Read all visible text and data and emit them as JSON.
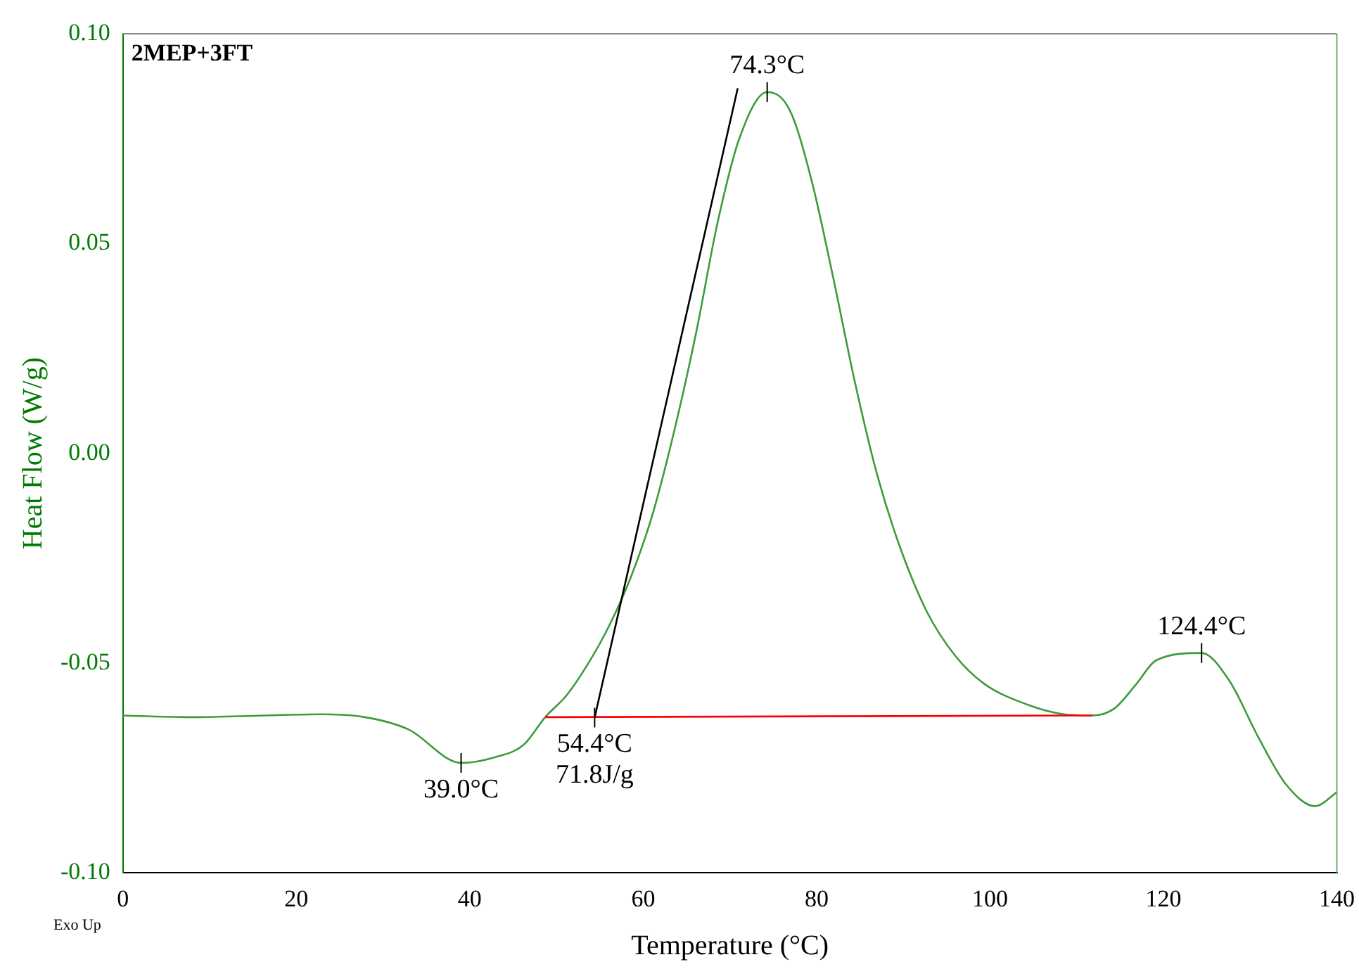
{
  "chart_data": {
    "type": "line",
    "title": "2MEP+3FT",
    "xlabel": "Temperature (°C)",
    "ylabel": "Heat Flow (W/g)",
    "xlim": [
      0,
      140
    ],
    "xticks": [
      0,
      20,
      40,
      60,
      80,
      100,
      120,
      140
    ],
    "ylim": [
      -0.1,
      0.1
    ],
    "yticks": [
      {
        "value": -0.1,
        "label": "-0.10"
      },
      {
        "value": -0.05,
        "label": "-0.05"
      },
      {
        "value": 0,
        "label": "0.00"
      },
      {
        "value": 0.05,
        "label": "0.05"
      },
      {
        "value": 0.1,
        "label": "0.10"
      }
    ],
    "grid": false,
    "legend": false,
    "marker": "none",
    "line_style": "solid",
    "series": [
      {
        "color": "#3c9c3c",
        "x": [
          0,
          8,
          16.3,
          22.9,
          27.9,
          32.9,
          39.0,
          42.8,
          46.2,
          48.7,
          51.2,
          53.6,
          56.1,
          58.6,
          61.1,
          63.6,
          66.1,
          68.6,
          71.1,
          74.3,
          76.9,
          79.4,
          81.9,
          84.4,
          86.9,
          89.4,
          92.7,
          96.0,
          99.3,
          104.3,
          108.5,
          111.8,
          114.3,
          116.8,
          119.2,
          124.4,
          127.6,
          130.9,
          134.2,
          137.5,
          140
        ],
        "values": [
          -0.0625,
          -0.0629,
          -0.0625,
          -0.0622,
          -0.0629,
          -0.0658,
          -0.0738,
          -0.0725,
          -0.0695,
          -0.0629,
          -0.0576,
          -0.0503,
          -0.041,
          -0.0294,
          -0.0144,
          0.0055,
          0.0287,
          0.0552,
          0.0751,
          0.0861,
          0.0818,
          0.0652,
          0.042,
          0.0171,
          -0.0045,
          -0.0211,
          -0.0377,
          -0.0483,
          -0.0549,
          -0.0599,
          -0.0622,
          -0.0625,
          -0.0609,
          -0.0552,
          -0.0493,
          -0.0476,
          -0.0542,
          -0.0675,
          -0.0791,
          -0.0841,
          -0.0808
        ]
      },
      {
        "color": "#ff0000",
        "x": [
          48.7,
          111.8
        ],
        "values": [
          -0.0629,
          -0.0625
        ]
      },
      {
        "color": "#000000",
        "x": [
          54.4,
          70.9
        ],
        "values": [
          -0.063,
          0.087
        ]
      }
    ],
    "annotations": [
      {
        "text": "74.3°C",
        "x": 74.3,
        "y": 0.0861
      },
      {
        "text": "39.0°C",
        "x": 39.0,
        "y": -0.0738
      },
      {
        "text": "54.4°C",
        "x": 54.4,
        "y": -0.063
      },
      "71.8J/g",
      {
        "text": "124.4°C",
        "x": 124.4,
        "y": -0.0476
      },
      "Exo Up"
    ]
  }
}
